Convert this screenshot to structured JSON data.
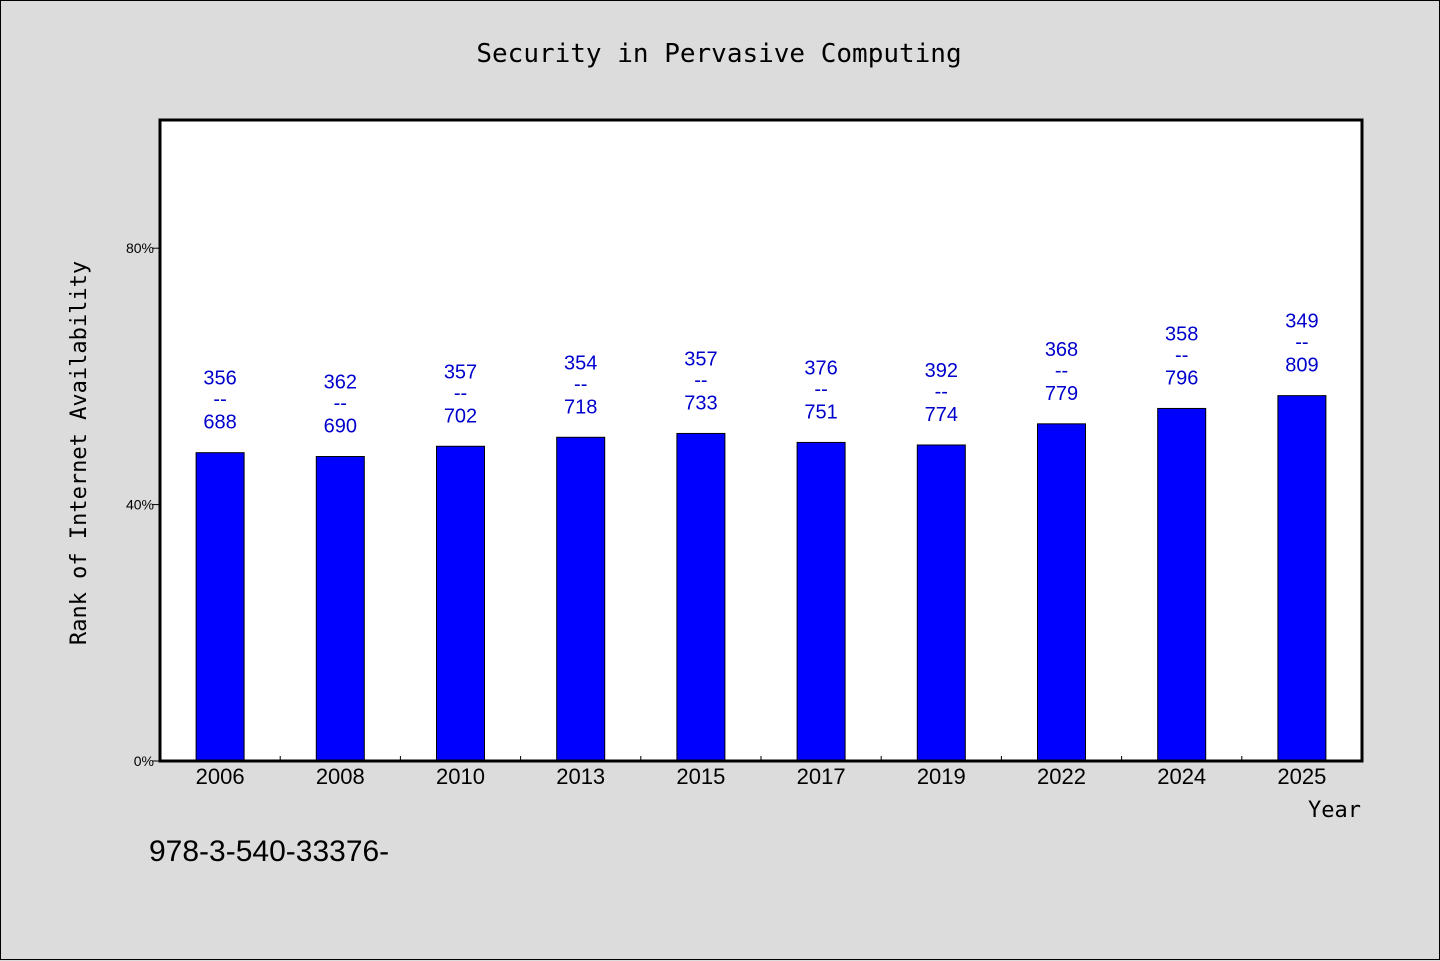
{
  "chart_data": {
    "type": "bar",
    "title": "Security in Pervasive Computing",
    "xlabel": "Year",
    "ylabel": "Rank of Internet Availability",
    "ylim": [
      0,
      100
    ],
    "yticks": [
      0,
      40,
      80
    ],
    "ytick_labels": [
      "0%",
      "40%",
      "80%"
    ],
    "categories": [
      "2006",
      "2008",
      "2010",
      "2013",
      "2015",
      "2017",
      "2019",
      "2022",
      "2024",
      "2025"
    ],
    "values": [
      48.1,
      47.5,
      49.1,
      50.5,
      51.1,
      49.7,
      49.3,
      52.6,
      55.0,
      57.0
    ],
    "labels": [
      {
        "top": "356",
        "sep": "--",
        "bottom": "688"
      },
      {
        "top": "362",
        "sep": "--",
        "bottom": "690"
      },
      {
        "top": "357",
        "sep": "--",
        "bottom": "702"
      },
      {
        "top": "354",
        "sep": "--",
        "bottom": "718"
      },
      {
        "top": "357",
        "sep": "--",
        "bottom": "733"
      },
      {
        "top": "376",
        "sep": "--",
        "bottom": "751"
      },
      {
        "top": "392",
        "sep": "--",
        "bottom": "774"
      },
      {
        "top": "368",
        "sep": "--",
        "bottom": "779"
      },
      {
        "top": "358",
        "sep": "--",
        "bottom": "796"
      },
      {
        "top": "349",
        "sep": "--",
        "bottom": "809"
      }
    ],
    "bar_color": "#0000ff",
    "label_color": "#0000cc",
    "plot_background": "#ffffff",
    "page_background": "#dcdcdc",
    "grid": false,
    "legend": "none"
  },
  "footer": {
    "note": "978-3-540-33376-"
  }
}
